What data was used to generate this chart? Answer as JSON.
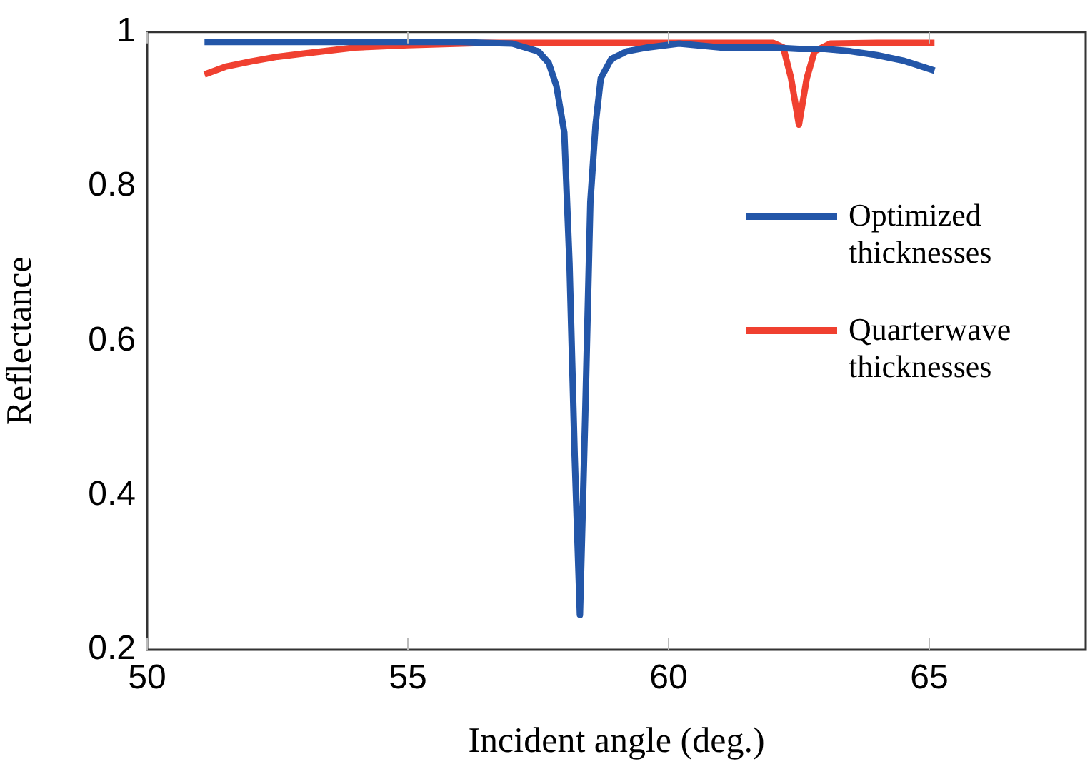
{
  "chart_data": {
    "type": "line",
    "xlabel": "Incident angle (deg.)",
    "ylabel": "Reflectance",
    "xlim": [
      50,
      68
    ],
    "xticks": [
      50,
      55,
      60,
      65
    ],
    "ylim": [
      0.2,
      1
    ],
    "yticks": [
      0.2,
      0.4,
      0.6,
      0.8,
      1
    ],
    "grid": false,
    "legend": "right",
    "marker": "none",
    "line_style": "solid",
    "series": [
      {
        "name": "Optimized thicknesses",
        "color": "#2356a8",
        "x": [
          51.1,
          52,
          53,
          54,
          55,
          56,
          56.5,
          57,
          57.5,
          57.7,
          57.85,
          58,
          58.1,
          58.2,
          58.3,
          58.4,
          58.5,
          58.6,
          58.7,
          58.9,
          59.2,
          59.6,
          60.2,
          61,
          62,
          62.5,
          63,
          63.5,
          64,
          64.5,
          65.1
        ],
        "values": [
          0.987,
          0.987,
          0.987,
          0.987,
          0.987,
          0.987,
          0.986,
          0.985,
          0.975,
          0.96,
          0.93,
          0.87,
          0.7,
          0.45,
          0.245,
          0.5,
          0.78,
          0.88,
          0.94,
          0.965,
          0.975,
          0.98,
          0.985,
          0.98,
          0.98,
          0.978,
          0.978,
          0.975,
          0.97,
          0.963,
          0.95
        ]
      },
      {
        "name": "Quarterwave thicknesses",
        "color": "#f04030",
        "x": [
          51.1,
          51.5,
          52,
          52.5,
          53,
          53.5,
          54,
          55,
          56.5,
          58,
          60,
          62,
          62.2,
          62.35,
          62.5,
          62.65,
          62.8,
          63.1,
          64,
          65.1
        ],
        "values": [
          0.945,
          0.955,
          0.962,
          0.968,
          0.972,
          0.976,
          0.98,
          0.983,
          0.986,
          0.986,
          0.986,
          0.986,
          0.98,
          0.94,
          0.88,
          0.94,
          0.975,
          0.985,
          0.986,
          0.986
        ]
      }
    ]
  }
}
